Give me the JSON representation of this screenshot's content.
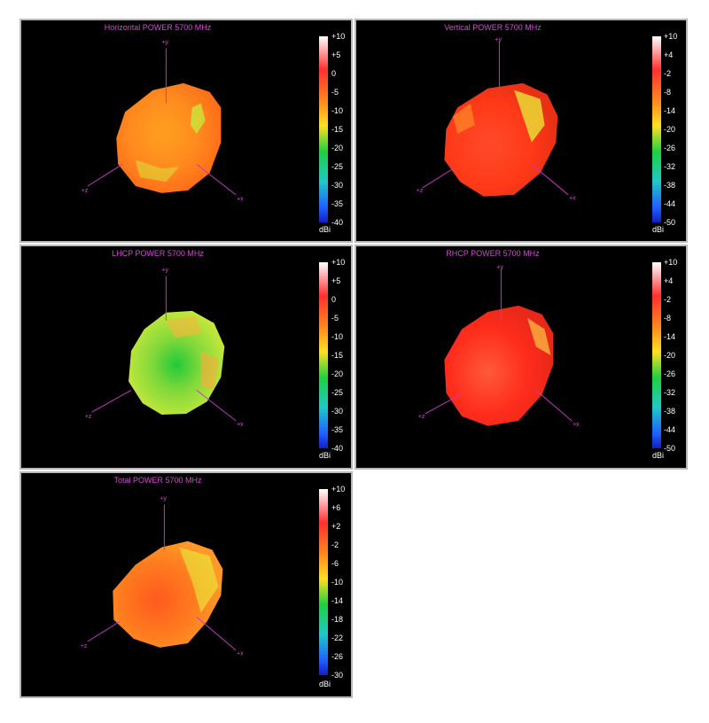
{
  "panels": [
    {
      "title": "Horizontal POWER 5700  MHz",
      "unit": "dBi",
      "colorbar_ticks": [
        "+10",
        "+5",
        "0",
        "-5",
        "-10",
        "-15",
        "-20",
        "-25",
        "-30",
        "-35",
        "-40"
      ],
      "axes": {
        "y": "+y",
        "z": "+z",
        "x": "+x"
      }
    },
    {
      "title": "Vertical POWER 5700  MHz",
      "unit": "dBi",
      "colorbar_ticks": [
        "+10",
        "+4",
        "-2",
        "-8",
        "-14",
        "-20",
        "-26",
        "-32",
        "-38",
        "-44",
        "-50"
      ],
      "axes": {
        "y": "+y",
        "z": "+z",
        "x": "+x"
      }
    },
    {
      "title": "LHCP POWER 5700  MHz",
      "unit": "dBi",
      "colorbar_ticks": [
        "+10",
        "+5",
        "0",
        "-5",
        "-10",
        "-15",
        "-20",
        "-25",
        "-30",
        "-35",
        "-40"
      ],
      "axes": {
        "y": "+y",
        "z": "+z",
        "x": "+x"
      }
    },
    {
      "title": "RHCP POWER 5700  MHz",
      "unit": "dBi",
      "colorbar_ticks": [
        "+10",
        "+4",
        "-2",
        "-8",
        "-14",
        "-20",
        "-26",
        "-32",
        "-38",
        "-44",
        "-50"
      ],
      "axes": {
        "y": "+y",
        "z": "+z",
        "x": "+x"
      }
    },
    {
      "title": "Total POWER 5700  MHz",
      "unit": "dBi",
      "colorbar_ticks": [
        "+10",
        "+6",
        "+2",
        "-2",
        "-6",
        "-10",
        "-14",
        "-18",
        "-22",
        "-26",
        "-30"
      ],
      "axes": {
        "y": "+y",
        "z": "+z",
        "x": "+x"
      }
    }
  ],
  "chart_data": [
    {
      "type": "3d-radiation-pattern",
      "title": "Horizontal POWER 5700  MHz",
      "colorbar": {
        "min": -40,
        "max": 10,
        "unit": "dBi"
      },
      "dominant_color": "#ff8a1e",
      "highlight_color": "#c8e83a"
    },
    {
      "type": "3d-radiation-pattern",
      "title": "Vertical POWER 5700  MHz",
      "colorbar": {
        "min": -50,
        "max": 10,
        "unit": "dBi"
      },
      "dominant_color": "#ff3a18",
      "highlight_color": "#e8f03a"
    },
    {
      "type": "3d-radiation-pattern",
      "title": "LHCP POWER 5700  MHz",
      "colorbar": {
        "min": -40,
        "max": 10,
        "unit": "dBi"
      },
      "dominant_color": "#b4e83c",
      "highlight_color": "#22c93a"
    },
    {
      "type": "3d-radiation-pattern",
      "title": "RHCP POWER 5700  MHz",
      "colorbar": {
        "min": -50,
        "max": 10,
        "unit": "dBi"
      },
      "dominant_color": "#ff2c1c",
      "highlight_color": "#ffd24a"
    },
    {
      "type": "3d-radiation-pattern",
      "title": "Total POWER 5700  MHz",
      "colorbar": {
        "min": -30,
        "max": 10,
        "unit": "dBi"
      },
      "dominant_color": "#ff7a1e",
      "highlight_color": "#e8ee3a"
    }
  ]
}
